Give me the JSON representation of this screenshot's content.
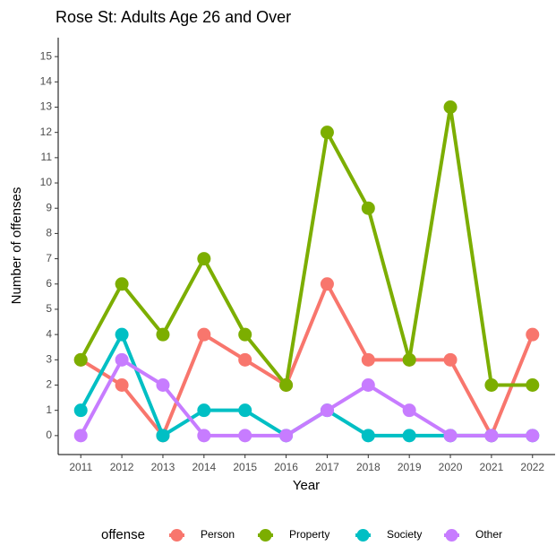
{
  "chart_data": {
    "type": "line",
    "title": "Rose St: Adults Age 26 and Over",
    "x_label": "Year",
    "y_label": "Number of offenses",
    "legend_title": "offense",
    "legend": "bottom",
    "x": [
      2011,
      2012,
      2013,
      2014,
      2015,
      2016,
      2017,
      2018,
      2019,
      2020,
      2021,
      2022
    ],
    "series": [
      {
        "name": "Person",
        "color": "#F8766D",
        "values": [
          3,
          2,
          0,
          4,
          3,
          2,
          6,
          3,
          3,
          3,
          0,
          4
        ]
      },
      {
        "name": "Property",
        "color": "#7CAE00",
        "values": [
          3,
          6,
          4,
          7,
          4,
          2,
          12,
          9,
          3,
          13,
          2,
          2
        ]
      },
      {
        "name": "Society",
        "color": "#00BFC4",
        "values": [
          1,
          4,
          0,
          1,
          1,
          0,
          1,
          0,
          0,
          0,
          0,
          0
        ]
      },
      {
        "name": "Other",
        "color": "#C77CFF",
        "values": [
          0,
          3,
          2,
          0,
          0,
          0,
          1,
          2,
          1,
          0,
          0,
          0
        ]
      }
    ],
    "xlim": [
      2010.45,
      2022.55
    ],
    "xticks": [
      2011,
      2012,
      2013,
      2014,
      2015,
      2016,
      2017,
      2018,
      2019,
      2020,
      2021,
      2022
    ],
    "ylim": [
      -0.75,
      15.75
    ],
    "yticks": [
      0,
      1,
      2,
      3,
      4,
      5,
      6,
      7,
      8,
      9,
      10,
      11,
      12,
      13,
      14,
      15
    ],
    "grid": false
  }
}
